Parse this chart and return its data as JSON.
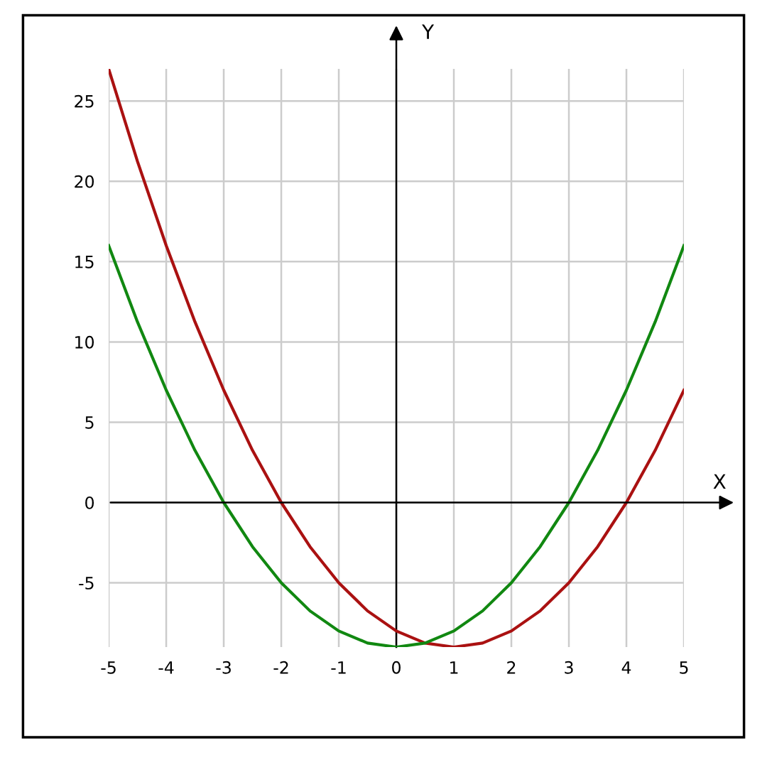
{
  "chart_data": {
    "type": "line",
    "xlabel": "X",
    "ylabel": "Y",
    "x": [
      -5,
      -4.5,
      -4,
      -3.5,
      -3,
      -2.5,
      -2,
      -1.5,
      -1,
      -0.5,
      0,
      0.5,
      1,
      1.5,
      2,
      2.5,
      3,
      3.5,
      4,
      4.5,
      5
    ],
    "series": [
      {
        "color": "#aa1111",
        "values": [
          27,
          21.25,
          16,
          11.25,
          7,
          3.25,
          0,
          -2.75,
          -5,
          -6.75,
          -8,
          -8.75,
          -9,
          -8.75,
          -8,
          -6.75,
          -5,
          -2.75,
          0,
          3.25,
          7
        ]
      },
      {
        "color": "#118811",
        "values": [
          16,
          11.25,
          7,
          3.25,
          0,
          -2.75,
          -5,
          -6.75,
          -8,
          -8.75,
          -9,
          -8.75,
          -8,
          -6.75,
          -5,
          -2.75,
          0,
          3.25,
          7,
          11.25,
          16
        ]
      }
    ],
    "xlim": [
      -5,
      5
    ],
    "ylim": [
      -9,
      27
    ],
    "xticks": [
      -5,
      -4,
      -3,
      -2,
      -1,
      0,
      1,
      2,
      3,
      4,
      5
    ],
    "yticks": [
      -5,
      0,
      5,
      10,
      15,
      20,
      25
    ],
    "grid": true,
    "line_style": "solid",
    "marker": "none"
  }
}
